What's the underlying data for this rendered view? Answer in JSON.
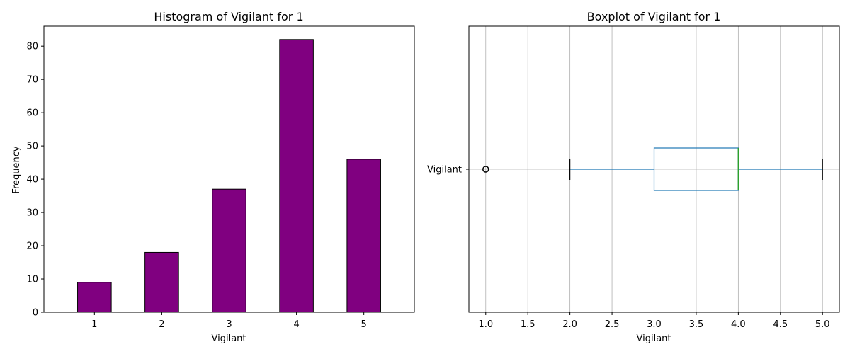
{
  "chart_data": [
    {
      "type": "bar",
      "title": "Histogram of Vigilant for 1",
      "xlabel": "Vigilant",
      "ylabel": "Frequency",
      "categories": [
        "1",
        "2",
        "3",
        "4",
        "5"
      ],
      "values": [
        9,
        18,
        37,
        82,
        46
      ],
      "ylim": [
        0,
        86
      ],
      "yticks": [
        "0",
        "10",
        "20",
        "30",
        "40",
        "50",
        "60",
        "70",
        "80"
      ],
      "bar_color": "#800080",
      "bar_edge_color": "#000000",
      "grid": false
    },
    {
      "type": "boxplot",
      "title": "Boxplot of Vigilant for 1",
      "xlabel": "Vigilant",
      "category": "Vigilant",
      "orientation": "horizontal",
      "xlim": [
        0.8,
        5.2
      ],
      "xticks": [
        "1.0",
        "1.5",
        "2.0",
        "2.5",
        "3.0",
        "3.5",
        "4.0",
        "4.5",
        "5.0"
      ],
      "whisker_low": 2.0,
      "q1": 3.0,
      "median": 4.0,
      "q3": 4.0,
      "whisker_high": 5.0,
      "outliers": [
        1.0
      ],
      "box_color": "#1f77b4",
      "median_color": "#2ca02c",
      "grid": true
    }
  ]
}
